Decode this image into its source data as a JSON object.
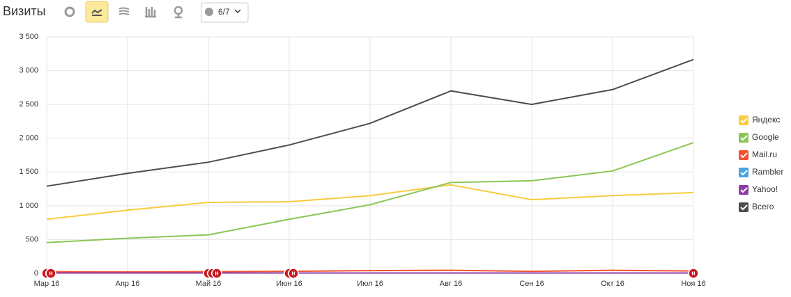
{
  "chart_data": {
    "type": "line",
    "title": "Визиты",
    "categories": [
      "Мар 16",
      "Апр 16",
      "Май 16",
      "Июн 16",
      "Июл 16",
      "Авг 16",
      "Сен 16",
      "Окт 16",
      "Ноя 16"
    ],
    "series": [
      {
        "name": "Яндекс",
        "color": "#f9cb3e",
        "values": [
          800,
          935,
          1050,
          1060,
          1150,
          1310,
          1090,
          1150,
          1195
        ]
      },
      {
        "name": "Google",
        "color": "#8bc553",
        "values": [
          455,
          520,
          570,
          800,
          1015,
          1345,
          1370,
          1515,
          1935
        ]
      },
      {
        "name": "Mail.ru",
        "color": "#f2502f",
        "values": [
          25,
          20,
          25,
          30,
          40,
          45,
          30,
          45,
          35
        ]
      },
      {
        "name": "Rambler",
        "color": "#4ba3e0",
        "values": [
          5,
          5,
          5,
          5,
          5,
          5,
          5,
          5,
          5
        ]
      },
      {
        "name": "Yahoo!",
        "color": "#8e3ba8",
        "values": [
          5,
          5,
          5,
          5,
          5,
          5,
          5,
          5,
          5
        ]
      },
      {
        "name": "Всего",
        "color": "#4d4d4d",
        "values": [
          1290,
          1480,
          1645,
          1900,
          2220,
          2700,
          2500,
          2720,
          3165
        ]
      }
    ],
    "ylim": [
      0,
      3500
    ],
    "yticks": [
      0,
      500,
      {
        "value": 1000,
        "label": "1 000"
      },
      {
        "value": 1500,
        "label": "1 500"
      },
      {
        "value": 2000,
        "label": "2 000"
      },
      {
        "value": 2500,
        "label": "2 500"
      },
      {
        "value": 3000,
        "label": "3 000"
      },
      {
        "value": 3500,
        "label": "3 500"
      }
    ],
    "grid": true,
    "legend": "right",
    "annotations": [
      {
        "x": "Мар 16",
        "text": "н"
      },
      {
        "x": "Мар 16",
        "text": "н"
      },
      {
        "x": "Май 16",
        "text": "н"
      },
      {
        "x": "Май 16",
        "text": "н"
      },
      {
        "x": "Май 16",
        "text": "н"
      },
      {
        "x": "Июн 16",
        "text": "н"
      },
      {
        "x": "Июн 16",
        "text": "н"
      },
      {
        "x": "Ноя 16",
        "text": "н"
      }
    ]
  },
  "toolbar": {
    "filter": "6/7"
  }
}
